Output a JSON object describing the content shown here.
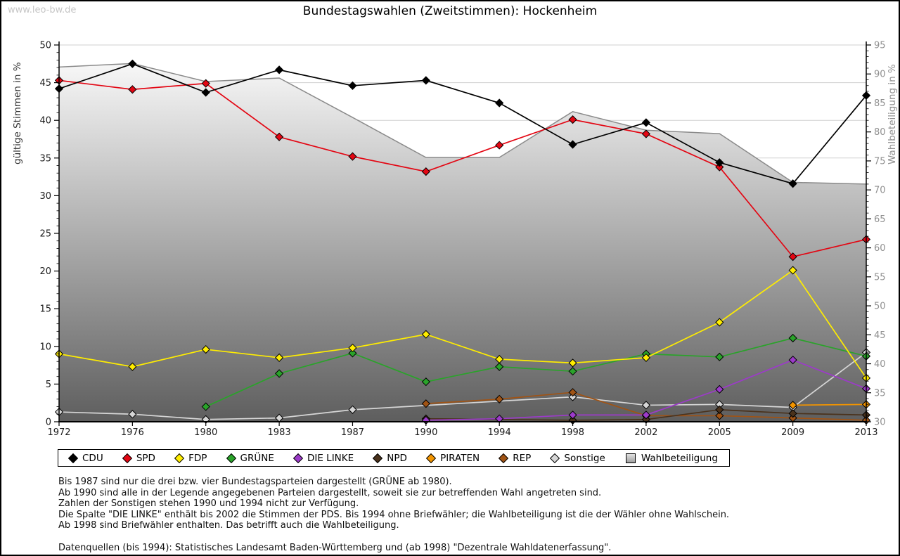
{
  "page": {
    "watermark": "www.leo-bw.de",
    "title": "Bundestagswahlen (Zweitstimmen): Hockenheim"
  },
  "chart_data": {
    "type": "line",
    "title": "Bundestagswahlen (Zweitstimmen): Hockenheim",
    "x_categories": [
      "1972",
      "1976",
      "1980",
      "1983",
      "1987",
      "1990",
      "1994",
      "1998",
      "2002",
      "2005",
      "2009",
      "2013"
    ],
    "grid": true,
    "legend_position": "bottom",
    "y_left_axis": {
      "label": "gültige Stimmen in %",
      "min": 0,
      "max": 50,
      "major_tick": 5,
      "minor_tick": 1,
      "tick_labels": [
        "0",
        "5",
        "10",
        "15",
        "20",
        "25",
        "30",
        "35",
        "40",
        "45",
        "50"
      ]
    },
    "y_right_axis": {
      "label": "Wahlbeteiligung in %",
      "min": 30,
      "max": 95,
      "major_tick": 5,
      "minor_tick": 1,
      "tick_labels": [
        "30",
        "35",
        "40",
        "45",
        "50",
        "55",
        "60",
        "65",
        "70",
        "75",
        "80",
        "85",
        "90",
        "95"
      ]
    },
    "series": [
      {
        "name": "CDU",
        "axis": "left",
        "marker": "diamond",
        "color": "#000000",
        "values": [
          44.2,
          47.5,
          43.7,
          46.7,
          44.6,
          45.3,
          42.3,
          36.8,
          39.7,
          34.4,
          31.6,
          43.3
        ]
      },
      {
        "name": "SPD",
        "axis": "left",
        "marker": "diamond",
        "color": "#e30613",
        "values": [
          45.3,
          44.1,
          44.9,
          37.8,
          35.2,
          33.2,
          36.7,
          40.1,
          38.2,
          33.8,
          21.9,
          24.2
        ]
      },
      {
        "name": "FDP",
        "axis": "left",
        "marker": "diamond",
        "color": "#ffed00",
        "values": [
          9.0,
          7.3,
          9.6,
          8.5,
          9.8,
          11.6,
          8.3,
          7.8,
          8.5,
          13.2,
          20.1,
          5.8
        ]
      },
      {
        "name": "GRÜNE",
        "axis": "left",
        "marker": "diamond",
        "color": "#2aa32a",
        "values": [
          null,
          null,
          2.0,
          6.4,
          9.1,
          5.3,
          7.3,
          6.7,
          9.0,
          8.6,
          11.1,
          8.7
        ]
      },
      {
        "name": "DIE LINKE",
        "axis": "left",
        "marker": "diamond",
        "color": "#9c3bc9",
        "values": [
          null,
          null,
          null,
          null,
          null,
          0.2,
          0.4,
          0.9,
          0.9,
          4.3,
          8.2,
          4.4
        ]
      },
      {
        "name": "NPD",
        "axis": "left",
        "marker": "diamond",
        "color": "#4a321c",
        "values": [
          null,
          null,
          null,
          null,
          null,
          0.4,
          null,
          0.2,
          0.3,
          1.6,
          1.1,
          0.9
        ]
      },
      {
        "name": "PIRATEN",
        "axis": "left",
        "marker": "diamond",
        "color": "#f29400",
        "values": [
          null,
          null,
          null,
          null,
          null,
          null,
          null,
          null,
          null,
          null,
          2.2,
          2.3
        ]
      },
      {
        "name": "REP",
        "axis": "left",
        "marker": "diamond",
        "color": "#a05314",
        "values": [
          null,
          null,
          null,
          null,
          null,
          2.4,
          3.0,
          3.9,
          0.8,
          0.8,
          0.5,
          0.2
        ]
      },
      {
        "name": "Sonstige",
        "axis": "left",
        "marker": "diamond",
        "color": "#d6d6d6",
        "values": [
          1.3,
          1.0,
          0.3,
          0.5,
          1.6,
          null,
          null,
          3.3,
          2.2,
          2.3,
          1.9,
          9.2
        ]
      },
      {
        "name": "Wahlbeteiligung",
        "axis": "right",
        "type": "area",
        "marker": "square",
        "color": "#bfbfbf",
        "values": [
          91.2,
          91.8,
          88.7,
          89.3,
          82.5,
          75.6,
          75.6,
          83.5,
          80.3,
          79.7,
          71.3,
          71.0
        ]
      }
    ]
  },
  "footnotes": {
    "lines": [
      "Bis 1987 sind nur die drei bzw. vier Bundestagsparteien dargestellt (GRÜNE ab 1980).",
      "Ab 1990 sind alle in der Legende angegebenen Parteien dargestellt, soweit sie zur betreffenden Wahl angetreten sind.",
      "Zahlen der Sonstigen stehen 1990 und 1994 nicht zur Verfügung.",
      "Die Spalte \"DIE LINKE\" enthält bis 2002 die Stimmen der PDS. Bis 1994 ohne Briefwähler; die Wahlbeteiligung ist die der Wähler ohne Wahlschein.",
      "Ab 1998 sind Briefwähler enthalten. Das betrifft auch die Wahlbeteiligung.",
      "",
      "Datenquellen (bis 1994): Statistisches Landesamt Baden-Württemberg und (ab 1998) \"Dezentrale Wahldatenerfassung\"."
    ]
  }
}
